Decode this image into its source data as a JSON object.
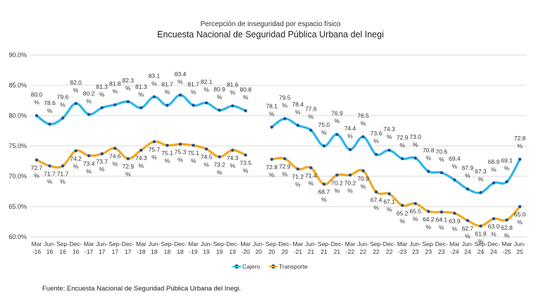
{
  "subtitle": "Percepción de inseguridad por espacio físico",
  "title": "Encuesta Nacional de Seguridad Pública Urbana del Inegi",
  "source": "Fuente: Encuesta Nacional de Seguridad Pública Urbana del Inegi.",
  "colors": {
    "cajero": "#29b7ea",
    "transporte": "#f2a81d",
    "grid": "#d9d9d9",
    "marker": "#1f4e9c"
  },
  "chart_data": {
    "type": "line",
    "title": "Encuesta Nacional de Seguridad Pública Urbana del Inegi",
    "subtitle": "Percepción de inseguridad por espacio físico",
    "ylim": [
      60,
      90
    ],
    "yticks": [
      "60.0%",
      "65.0%",
      "70.0%",
      "75.0%",
      "80.0%",
      "85.0%",
      "90.0%"
    ],
    "categories": [
      [
        "Mar",
        "-16"
      ],
      [
        "Jun-",
        "16"
      ],
      [
        "Sep-",
        "16"
      ],
      [
        "Dec-",
        "16"
      ],
      [
        "Mar",
        "-17"
      ],
      [
        "Jun-",
        "17"
      ],
      [
        "Sep-",
        "17"
      ],
      [
        "Dec-",
        "17"
      ],
      [
        "Mar",
        "-18"
      ],
      [
        "Jun-",
        "18"
      ],
      [
        "Sep-",
        "18"
      ],
      [
        "Dec-",
        "18"
      ],
      [
        "Mar",
        "-19"
      ],
      [
        "Jun-",
        "19"
      ],
      [
        "Sep-",
        "19"
      ],
      [
        "Dec-",
        "19"
      ],
      [
        "Mar",
        "-20"
      ],
      [
        "Jun-",
        "20"
      ],
      [
        "Sep-",
        "20"
      ],
      [
        "Dec-",
        "20"
      ],
      [
        "Mar",
        "-21"
      ],
      [
        "Jun-",
        "21"
      ],
      [
        "Sep-",
        "21"
      ],
      [
        "Dec-",
        "21"
      ],
      [
        "Mar",
        "-22"
      ],
      [
        "Jun-",
        "22"
      ],
      [
        "Sep-",
        "22"
      ],
      [
        "Dec-",
        "22"
      ],
      [
        "Mar",
        "-23"
      ],
      [
        "Jun-",
        "23"
      ],
      [
        "Sep-",
        "23"
      ],
      [
        "Dec-",
        "23"
      ],
      [
        "Mar",
        "-24"
      ],
      [
        "Jun-",
        "24"
      ],
      [
        "Sep-",
        "24"
      ],
      [
        "Dec-",
        "24"
      ],
      [
        "Mar",
        "-25"
      ],
      [
        "Jun-",
        "25"
      ]
    ],
    "series": [
      {
        "name": "Cajero",
        "values": [
          80.0,
          78.6,
          79.6,
          82.0,
          80.2,
          81.3,
          81.8,
          82.3,
          81.3,
          83.1,
          81.7,
          83.4,
          81.7,
          82.1,
          80.9,
          81.6,
          80.8,
          null,
          78.1,
          79.5,
          78.4,
          77.6,
          75.0,
          76.9,
          74.4,
          76.5,
          73.6,
          74.3,
          72.9,
          73.0,
          70.8,
          70.6,
          69.4,
          67.9,
          67.3,
          68.9,
          69.1,
          72.8
        ]
      },
      {
        "name": "Transporte",
        "values": [
          72.7,
          71.7,
          71.7,
          74.2,
          73.4,
          73.7,
          74.6,
          72.9,
          74.3,
          75.7,
          75.1,
          75.3,
          75.1,
          74.5,
          73.2,
          74.3,
          73.5,
          null,
          72.8,
          72.9,
          71.2,
          71.4,
          68.7,
          70.2,
          70.2,
          70.9,
          67.4,
          67.1,
          65.2,
          65.5,
          64.2,
          64.1,
          63.9,
          62.7,
          61.8,
          63.0,
          62.8,
          65.0
        ]
      }
    ],
    "legend": [
      "Cajero",
      "Transporte"
    ],
    "legend_position": "bottom"
  }
}
